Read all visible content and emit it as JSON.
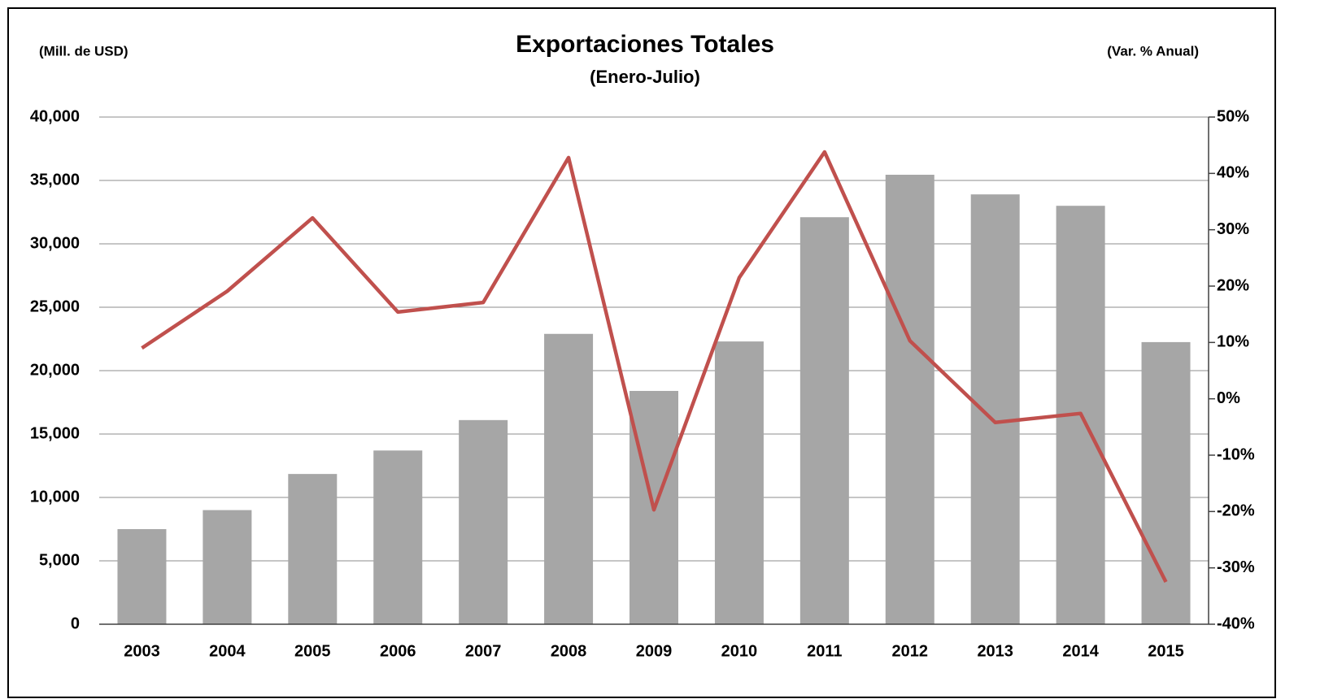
{
  "chart_data": {
    "type": "bar",
    "title": "Exportaciones Totales",
    "subtitle": "(Enero-Julio)",
    "ylabel": "(Mill. de USD)",
    "y2label": "(Var. % Anual)",
    "categories": [
      "2003",
      "2004",
      "2005",
      "2006",
      "2007",
      "2008",
      "2009",
      "2010",
      "2011",
      "2012",
      "2013",
      "2014",
      "2015"
    ],
    "series": [
      {
        "name": "Exportaciones",
        "type": "bar",
        "color": "#a6a6a6",
        "axis": "y",
        "values": [
          7500,
          9000,
          11850,
          13700,
          16100,
          22900,
          18400,
          22300,
          32100,
          35450,
          33900,
          33000,
          22250
        ]
      },
      {
        "name": "Var. % Anual",
        "type": "line",
        "color": "#c0504d",
        "axis": "y2",
        "values": [
          9.0,
          19.1,
          32.1,
          15.4,
          17.1,
          42.8,
          -19.7,
          21.5,
          43.8,
          10.3,
          -4.2,
          -2.6,
          -32.5
        ]
      }
    ],
    "ylim": [
      0,
      40000
    ],
    "yticks": [
      0,
      {
        "value": 5000,
        "label": "5,000"
      },
      {
        "value": 10000,
        "label": "10,000"
      },
      {
        "value": 15000,
        "label": "15,000"
      },
      {
        "value": 20000,
        "label": "20,000"
      },
      {
        "value": 25000,
        "label": "25,000"
      },
      {
        "value": 30000,
        "label": "30,000"
      },
      {
        "value": 35000,
        "label": "35,000"
      },
      {
        "value": 40000,
        "label": "40,000"
      }
    ],
    "y2lim": [
      -40,
      50
    ],
    "y2ticks": [
      {
        "value": -40,
        "label": "-40%"
      },
      {
        "value": -30,
        "label": "-30%"
      },
      {
        "value": -20,
        "label": "-20%"
      },
      {
        "value": -10,
        "label": "-10%"
      },
      {
        "value": 0,
        "label": "0%"
      },
      {
        "value": 10,
        "label": "10%"
      },
      {
        "value": 20,
        "label": "20%"
      },
      {
        "value": 30,
        "label": "30%"
      },
      {
        "value": 40,
        "label": "40%"
      },
      {
        "value": 50,
        "label": "50%"
      }
    ],
    "y2color": "#c00000",
    "grid": true
  }
}
